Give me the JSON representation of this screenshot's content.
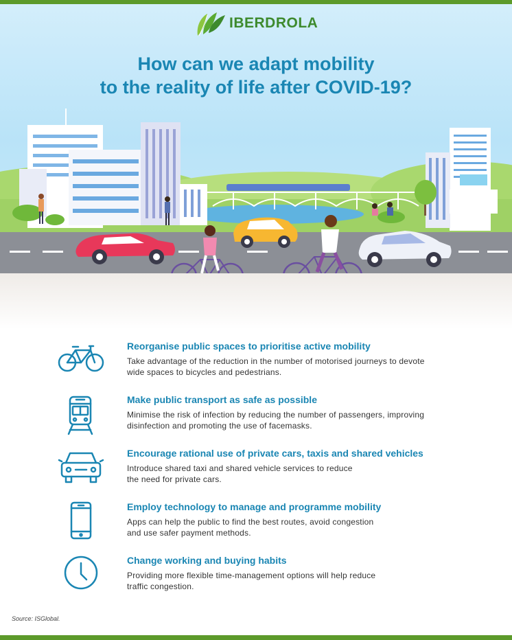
{
  "brand": {
    "name": "IBERDROLA"
  },
  "title": {
    "line1": "How can we adapt mobility",
    "line2": "to the reality of life after COVID-19?"
  },
  "items": [
    {
      "icon": "bicycle-icon",
      "heading": "Reorganise public spaces to prioritise active mobility",
      "line1": "Take advantage of the reduction in the number of motorised journeys to devote",
      "line2": "wide spaces to bicycles and pedestrians."
    },
    {
      "icon": "train-icon",
      "heading": "Make public transport as safe as possible",
      "line1": "Minimise the risk of infection by reducing the number of passengers, improving",
      "line2": "disinfection and promoting the use of facemasks."
    },
    {
      "icon": "car-icon",
      "heading": "Encourage rational use of private cars, taxis and shared vehicles",
      "line1": "Introduce shared taxi and shared vehicle services to reduce",
      "line2": "the need for private cars."
    },
    {
      "icon": "smartphone-icon",
      "heading": "Employ technology to manage and programme mobility",
      "line1": "Apps can help the public to find the best routes, avoid congestion",
      "line2": "and use safer payment methods."
    },
    {
      "icon": "clock-icon",
      "heading": "Change working and buying habits",
      "line1": "Providing more flexible time-management options will help reduce",
      "line2": "traffic congestion."
    }
  ],
  "source": "Source: ISGlobal.",
  "colors": {
    "accent": "#1a86b3",
    "brand_green": "#3d8a2d",
    "bar_green": "#5c9a2a"
  }
}
